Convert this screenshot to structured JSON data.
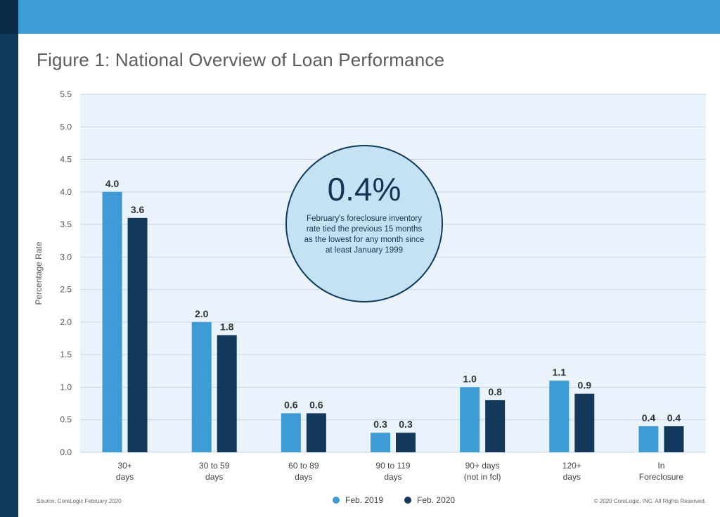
{
  "title": "Figure 1: National Overview of Loan Performance",
  "callout": {
    "value": "0.4%",
    "text": "February's foreclosure inventory rate tied the previous 15 months as the lowest for any month since at least January 1999"
  },
  "source": "Source: CoreLogic February 2020",
  "copyright": "© 2020 CoreLogic, INC. All Rights Reserved.",
  "colors": {
    "feb_2019": "#3d9bd5",
    "feb_2020": "#12395b",
    "plot_bg": "#eaf3fb",
    "grid": "#c4d6e6",
    "callout_fill": "#c5e2f4",
    "header": "#3d9bd5",
    "sidebar": "#0f3a5c"
  },
  "chart_data": {
    "type": "bar",
    "ylabel": "Percentage Rate",
    "ylim": [
      0,
      5.5
    ],
    "yticks": [
      "0.0",
      "0.5",
      "1.0",
      "1.5",
      "2.0",
      "2.5",
      "3.0",
      "3.5",
      "4.0",
      "4.5",
      "5.0",
      "5.5"
    ],
    "grid": true,
    "legend_placement": "bottom-center",
    "categories": [
      [
        "30+",
        "days"
      ],
      [
        "30 to 59",
        "days"
      ],
      [
        "60 to 89",
        "days"
      ],
      [
        "90 to 119",
        "days"
      ],
      [
        "90+ days",
        "(not in fcl)"
      ],
      [
        "120+",
        "days"
      ],
      [
        "In",
        "Foreclosure"
      ]
    ],
    "series": [
      {
        "name": "Feb. 2019",
        "values": [
          4.0,
          2.0,
          0.6,
          0.3,
          1.0,
          1.1,
          0.4
        ],
        "labels": [
          "4.0",
          "2.0",
          "0.6",
          "0.3",
          "1.0",
          "1.1",
          "0.4"
        ]
      },
      {
        "name": "Feb. 2020",
        "values": [
          3.6,
          1.8,
          0.6,
          0.3,
          0.8,
          0.9,
          0.4
        ],
        "labels": [
          "3.6",
          "1.8",
          "0.6",
          "0.3",
          "0.8",
          "0.9",
          "0.4"
        ]
      }
    ]
  }
}
